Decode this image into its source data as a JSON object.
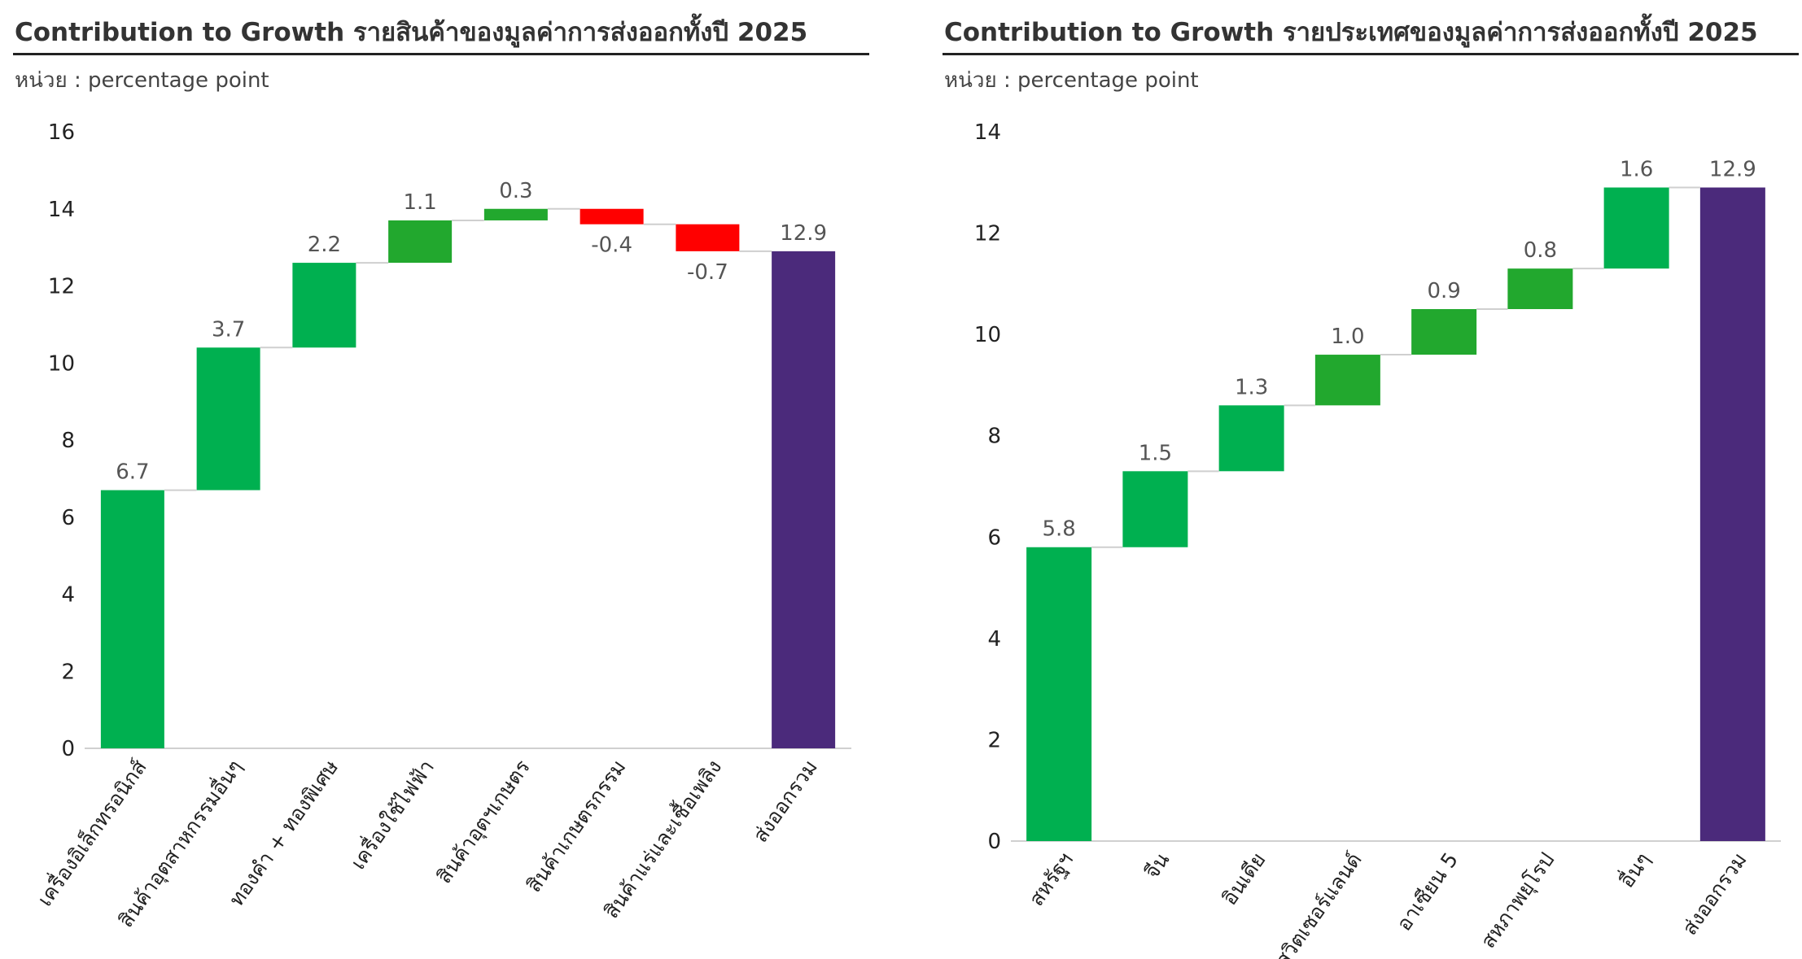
{
  "colors": {
    "positive": "#00b050",
    "positive_dark": "#22a82e",
    "negative": "#ff0000",
    "total": "#4b2a7b",
    "axis": "#d0d0d0",
    "connector": "#cfcfcf",
    "label": "#555555",
    "tick": "#222222"
  },
  "chart_data": [
    {
      "type": "waterfall",
      "title": "Contribution to Growth รายสินค้าของมูลค่าการส่งออกทั้งปี 2025",
      "unit_label": "หน่วย : percentage point",
      "ylim": [
        0,
        16
      ],
      "yticks": [
        0,
        2,
        4,
        6,
        8,
        10,
        12,
        14,
        16
      ],
      "categories": [
        "เครื่องอิเล็กทรอนิกส์",
        "สินค้าอุตสาหกรรมอื่นๆ",
        "ทองคำ + ทองพิเศษ",
        "เครื่องใช้ไฟฟ้า",
        "สินค้าอุตฯเกษตร",
        "สินค้าเกษตรกรรม",
        "สินค้าแร่และเชื้อเพลิง",
        "ส่งออกรวม"
      ],
      "values": [
        6.7,
        3.7,
        2.2,
        1.1,
        0.3,
        -0.4,
        -0.7,
        12.9
      ],
      "value_labels": [
        "6.7",
        "3.7",
        "2.2",
        "1.1",
        "0.3",
        "-0.4",
        "-0.7",
        "12.9"
      ],
      "bar_colors": [
        "#00b050",
        "#00b050",
        "#00b050",
        "#22a82e",
        "#22a82e",
        "#ff0000",
        "#ff0000",
        "#4b2a7b"
      ],
      "total_index": 7
    },
    {
      "type": "waterfall",
      "title": "Contribution to Growth รายประเทศของมูลค่าการส่งออกทั้งปี 2025",
      "unit_label": "หน่วย : percentage point",
      "ylim": [
        0,
        14
      ],
      "yticks": [
        0,
        2,
        4,
        6,
        8,
        10,
        12,
        14
      ],
      "categories": [
        "สหรัฐฯ",
        "จีน",
        "อินเดีย",
        "สวิตเซอร์แลนด์",
        "อาเซียน 5",
        "สหภาพยุโรป",
        "อื่นๆ",
        "ส่งออกรวม"
      ],
      "values": [
        5.8,
        1.5,
        1.3,
        1.0,
        0.9,
        0.8,
        1.6,
        12.9
      ],
      "value_labels": [
        "5.8",
        "1.5",
        "1.3",
        "1.0",
        "0.9",
        "0.8",
        "1.6",
        "12.9"
      ],
      "bar_colors": [
        "#00b050",
        "#00b050",
        "#00b050",
        "#22a82e",
        "#22a82e",
        "#22a82e",
        "#00b050",
        "#4b2a7b"
      ],
      "total_index": 7
    }
  ]
}
